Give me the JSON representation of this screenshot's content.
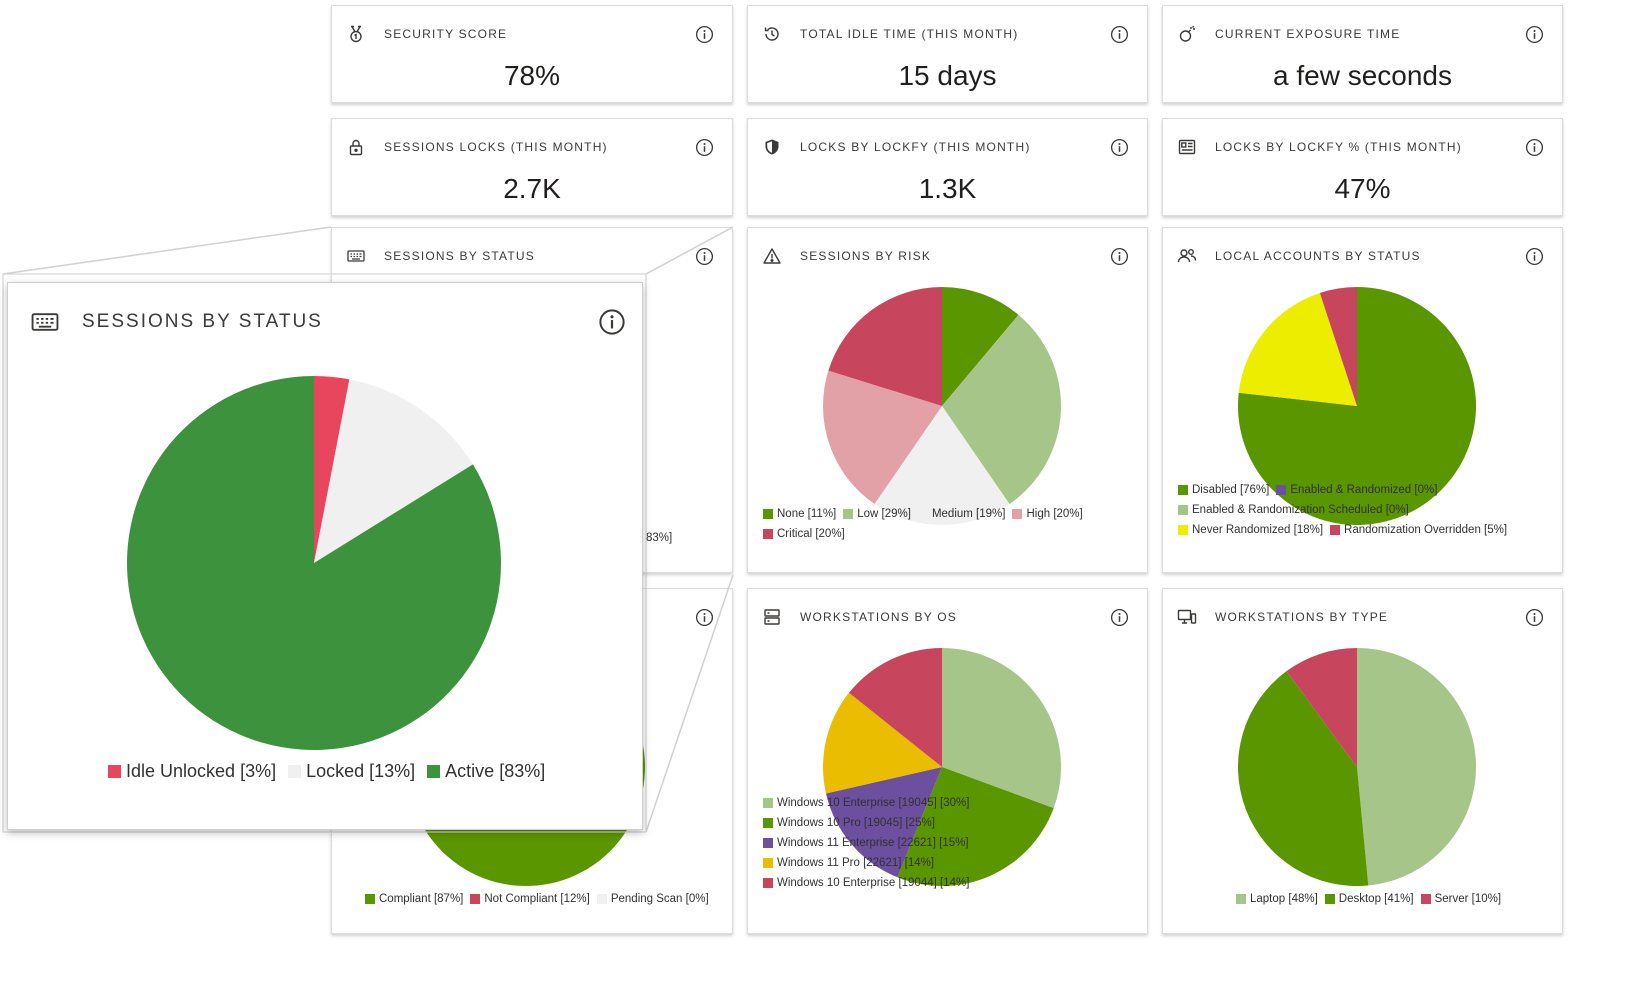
{
  "colors": {
    "green_dark": "#5a9600",
    "green_light": "#a6c588",
    "pink_light": "#e2a1a6",
    "crimson": "#c8455e",
    "idle_red": "#e8465c",
    "very_light_gray": "#f0f0f0",
    "yellow": "#eded00",
    "gold": "#ebbd00",
    "purple": "#6d4f9f",
    "active_green": "#3d933d"
  },
  "stats": [
    {
      "title": "Security Score",
      "value": "78%",
      "icon": "medal-icon"
    },
    {
      "title": "Total Idle Time (This Month)",
      "value": "15 days",
      "icon": "history-icon"
    },
    {
      "title": "Current Exposure Time",
      "value": "a few seconds",
      "icon": "bomb-icon"
    },
    {
      "title": "Sessions Locks (This Month)",
      "value": "2.7K",
      "icon": "lock-icon"
    },
    {
      "title": "Locks By Lockfy (This Month)",
      "value": "1.3K",
      "icon": "shield-icon"
    },
    {
      "title": "Locks By Lockfy % (This Month)",
      "value": "47%",
      "icon": "id-card-icon"
    }
  ],
  "charts": {
    "sessions_by_status": {
      "title": "Sessions by Status",
      "hidden_legend_fragment": "83%]"
    },
    "compliance": {
      "legend": [
        "Compliant [87%]",
        "Not Compliant [12%]",
        "Pending Scan [0%]"
      ]
    },
    "sessions_by_risk": {
      "title": "Sessions by Risk",
      "legend": [
        "None [11%]",
        "Low [29%]",
        "Medium [19%]",
        "High [20%]",
        "Critical [20%]"
      ]
    },
    "local_accounts": {
      "title": "Local Accounts by Status",
      "legend": [
        "Disabled [76%]",
        "Enabled & Randomized [0%]",
        "Enabled & Randomization Scheduled [0%]",
        "Never Randomized [18%]",
        "Randomization Overridden [5%]"
      ]
    },
    "workstations_by_os": {
      "title": "Workstations by OS",
      "legend": [
        "Windows 10 Enterprise [19045] [30%]",
        "Windows 10 Pro [19045] [25%]",
        "Windows 11 Enterprise [22621] [15%]",
        "Windows 11 Pro [22621] [14%]",
        "Windows 10 Enterprise [19044] [14%]"
      ]
    },
    "workstations_by_type": {
      "title": "Workstations by Type",
      "legend": [
        "Laptop [48%]",
        "Desktop [41%]",
        "Server [10%]"
      ]
    }
  },
  "popup": {
    "title": "Sessions by Status",
    "legend": [
      "Idle Unlocked [3%]",
      "Locked [13%]",
      "Active [83%]"
    ]
  },
  "chart_data": [
    {
      "type": "pie",
      "title": "Sessions by Status",
      "categories": [
        "Idle Unlocked",
        "Locked",
        "Active"
      ],
      "values": [
        3,
        13,
        83
      ],
      "colors": [
        "#e8465c",
        "#f0f0f0",
        "#3d933d"
      ]
    },
    {
      "type": "pie",
      "title": "Sessions by Risk",
      "categories": [
        "None",
        "Low",
        "Medium",
        "High",
        "Critical"
      ],
      "values": [
        11,
        29,
        19,
        20,
        20
      ],
      "colors": [
        "#5a9600",
        "#a6c588",
        "#f0f0f0",
        "#e2a1a6",
        "#c8455e"
      ]
    },
    {
      "type": "pie",
      "title": "Local Accounts by Status",
      "categories": [
        "Disabled",
        "Enabled & Randomized",
        "Enabled & Randomization Scheduled",
        "Never Randomized",
        "Randomization Overridden"
      ],
      "values": [
        76,
        0,
        0,
        18,
        5
      ],
      "colors": [
        "#5a9600",
        "#6d4f9f",
        "#a6c588",
        "#eded00",
        "#c8455e"
      ]
    },
    {
      "type": "pie",
      "title": "Workstations by OS",
      "categories": [
        "Windows 10 Enterprise [19045]",
        "Windows 10 Pro [19045]",
        "Windows 11 Enterprise [22621]",
        "Windows 11 Pro [22621]",
        "Windows 10 Enterprise [19044]"
      ],
      "values": [
        30,
        25,
        15,
        14,
        14
      ],
      "colors": [
        "#a6c588",
        "#5a9600",
        "#6d4f9f",
        "#ebbd00",
        "#c8455e"
      ]
    },
    {
      "type": "pie",
      "title": "Workstations by Type",
      "categories": [
        "Laptop",
        "Desktop",
        "Server"
      ],
      "values": [
        48,
        41,
        10
      ],
      "colors": [
        "#a6c588",
        "#5a9600",
        "#c8455e"
      ]
    },
    {
      "type": "pie",
      "categories": [
        "Compliant",
        "Not Compliant",
        "Pending Scan"
      ],
      "values": [
        87,
        12,
        0
      ],
      "colors": [
        "#5a9600",
        "#c8455e",
        "#f0f0f0"
      ]
    }
  ]
}
